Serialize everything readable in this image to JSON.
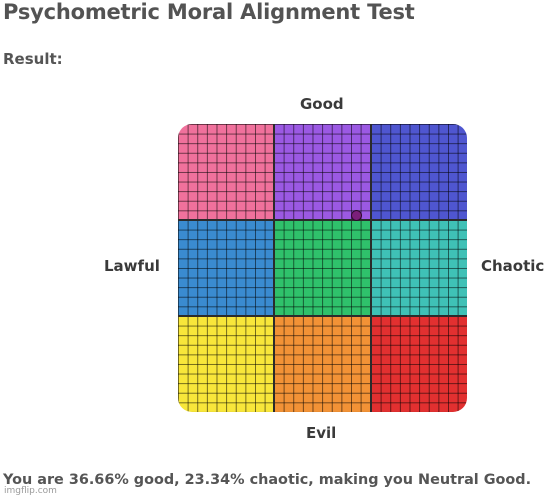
{
  "page": {
    "title": "Psychometric Moral Alignment Test",
    "result_label": "Result:"
  },
  "axes": {
    "top": "Good",
    "bottom": "Evil",
    "left": "Lawful",
    "right": "Chaotic"
  },
  "grid": {
    "cells": [
      {
        "name": "lawful-good",
        "color": "#f0719c"
      },
      {
        "name": "neutral-good",
        "color": "#9b59e3"
      },
      {
        "name": "chaotic-good",
        "color": "#4f56d0"
      },
      {
        "name": "lawful-neutral",
        "color": "#3a8bd0"
      },
      {
        "name": "true-neutral",
        "color": "#2fc16b"
      },
      {
        "name": "chaotic-neutral",
        "color": "#3fc1b6"
      },
      {
        "name": "lawful-evil",
        "color": "#f8e63a"
      },
      {
        "name": "neutral-evil",
        "color": "#f29236"
      },
      {
        "name": "chaotic-evil",
        "color": "#e23030"
      }
    ],
    "marker": {
      "good_percent": 36.66,
      "chaotic_percent": 23.34,
      "color": "#7b1f7a"
    }
  },
  "summary": "You are 36.66% good, 23.34% chaotic, making you Neutral Good.",
  "watermark": "imgflip.com"
}
